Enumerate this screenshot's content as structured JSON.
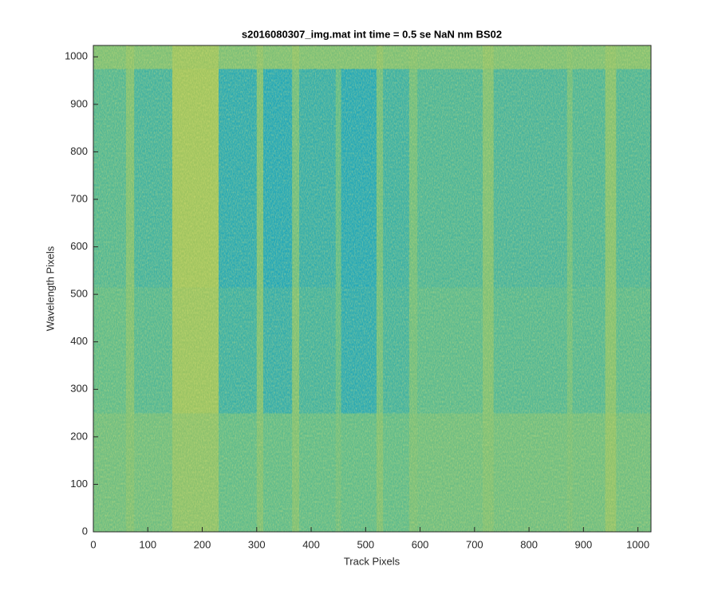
{
  "chart_data": {
    "type": "heatmap",
    "title": "s2016080307_img.mat int time = 0.5 se  NaN nm BS02",
    "x_label": "Track Pixels",
    "y_label": "Wavelength Pixels",
    "xlim": [
      0,
      1024
    ],
    "ylim": [
      0,
      1024
    ],
    "xticks": [
      0,
      100,
      200,
      300,
      400,
      500,
      600,
      700,
      800,
      900,
      1000
    ],
    "yticks": [
      0,
      100,
      200,
      300,
      400,
      500,
      600,
      700,
      800,
      900,
      1000
    ],
    "x_edges": [
      0,
      60,
      75,
      145,
      230,
      300,
      312,
      365,
      378,
      445,
      455,
      520,
      532,
      580,
      595,
      715,
      735,
      870,
      880,
      940,
      960,
      1024
    ],
    "y_edges": [
      0,
      250,
      515,
      975,
      1024
    ],
    "clim": [
      0,
      1
    ],
    "colormap": [
      "#1f8fd0",
      "#25a8b8",
      "#5fbb8c",
      "#a8c55a",
      "#e2c83c"
    ],
    "z": [
      [
        0.55,
        0.6,
        0.55,
        0.65,
        0.5,
        0.6,
        0.5,
        0.6,
        0.5,
        0.55,
        0.5,
        0.6,
        0.5,
        0.58,
        0.55,
        0.6,
        0.55,
        0.58,
        0.55,
        0.65,
        0.55
      ],
      [
        0.5,
        0.6,
        0.45,
        0.7,
        0.35,
        0.6,
        0.32,
        0.6,
        0.38,
        0.5,
        0.28,
        0.55,
        0.38,
        0.55,
        0.48,
        0.6,
        0.45,
        0.55,
        0.45,
        0.62,
        0.48
      ],
      [
        0.45,
        0.6,
        0.38,
        0.72,
        0.28,
        0.6,
        0.25,
        0.55,
        0.32,
        0.5,
        0.25,
        0.55,
        0.35,
        0.55,
        0.42,
        0.6,
        0.4,
        0.55,
        0.42,
        0.62,
        0.42
      ],
      [
        0.6,
        0.65,
        0.6,
        0.7,
        0.6,
        0.65,
        0.6,
        0.65,
        0.6,
        0.6,
        0.6,
        0.65,
        0.6,
        0.62,
        0.6,
        0.65,
        0.6,
        0.62,
        0.6,
        0.65,
        0.62
      ]
    ]
  }
}
